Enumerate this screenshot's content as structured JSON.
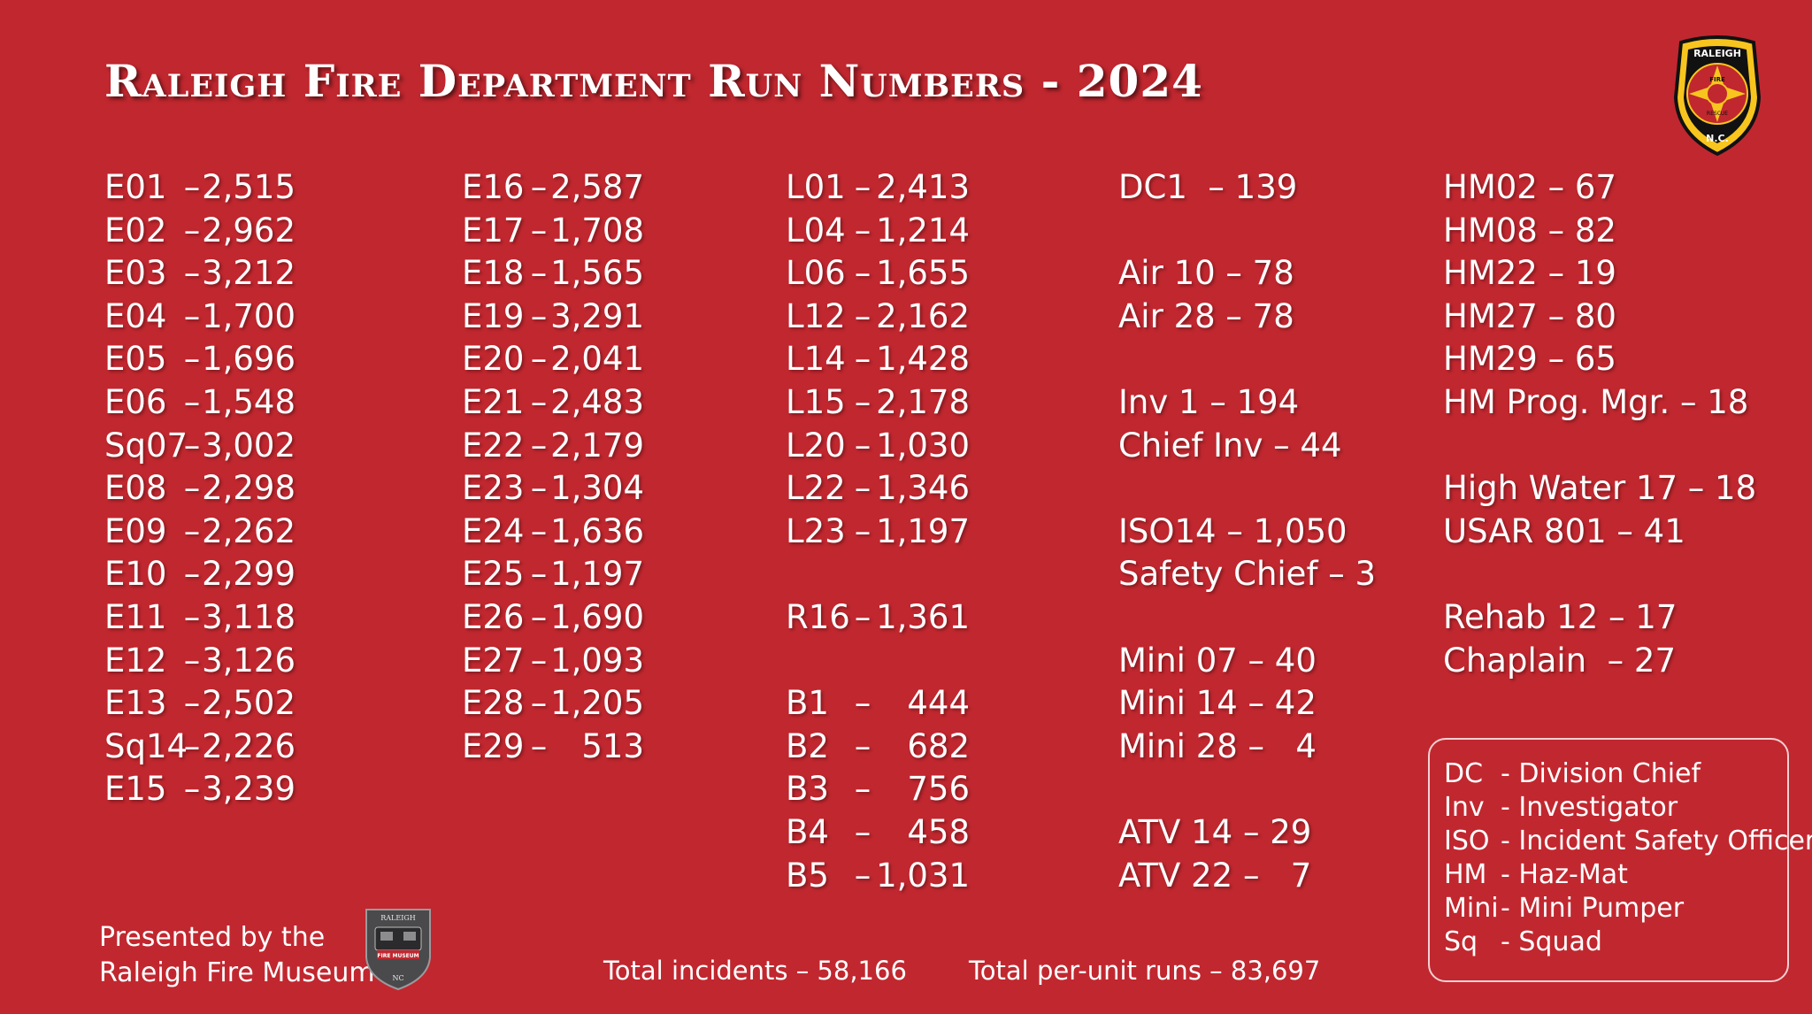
{
  "title": "Raleigh Fire Department Run Numbers - 2024",
  "badge": {
    "top_text": "RALEIGH",
    "center_text": "FIRE",
    "lower_text": "RESCUE",
    "bottom_text": "N.C."
  },
  "columns": [
    {
      "type": "runs",
      "rows": [
        {
          "unit": "E01",
          "sep": "–",
          "value": "2,515"
        },
        {
          "unit": "E02",
          "sep": "–",
          "value": "2,962"
        },
        {
          "unit": "E03",
          "sep": "–",
          "value": "3,212"
        },
        {
          "unit": "E04",
          "sep": "–",
          "value": "1,700"
        },
        {
          "unit": "E05",
          "sep": "–",
          "value": "1,696"
        },
        {
          "unit": "E06",
          "sep": "–",
          "value": "1,548"
        },
        {
          "unit": "Sq07",
          "sep": "–",
          "value": "3,002"
        },
        {
          "unit": "E08",
          "sep": "–",
          "value": "2,298"
        },
        {
          "unit": "E09",
          "sep": "–",
          "value": "2,262"
        },
        {
          "unit": "E10",
          "sep": "–",
          "value": "2,299"
        },
        {
          "unit": "E11",
          "sep": "–",
          "value": "3,118"
        },
        {
          "unit": "E12",
          "sep": "–",
          "value": "3,126"
        },
        {
          "unit": "E13",
          "sep": "–",
          "value": "2,502"
        },
        {
          "unit": "Sq14",
          "sep": "–",
          "value": "2,226"
        },
        {
          "unit": "E15",
          "sep": "–",
          "value": "3,239"
        }
      ]
    },
    {
      "type": "runs",
      "rows": [
        {
          "unit": "E16",
          "sep": "–",
          "value": "2,587"
        },
        {
          "unit": "E17",
          "sep": "–",
          "value": "1,708"
        },
        {
          "unit": "E18",
          "sep": "–",
          "value": "1,565"
        },
        {
          "unit": "E19",
          "sep": "–",
          "value": "3,291"
        },
        {
          "unit": "E20",
          "sep": "–",
          "value": "2,041"
        },
        {
          "unit": "E21",
          "sep": "–",
          "value": "2,483"
        },
        {
          "unit": "E22",
          "sep": "–",
          "value": "2,179"
        },
        {
          "unit": "E23",
          "sep": "–",
          "value": "1,304"
        },
        {
          "unit": "E24",
          "sep": "–",
          "value": "1,636"
        },
        {
          "unit": "E25",
          "sep": "–",
          "value": "1,197"
        },
        {
          "unit": "E26",
          "sep": "–",
          "value": "1,690"
        },
        {
          "unit": "E27",
          "sep": "–",
          "value": "1,093"
        },
        {
          "unit": "E28",
          "sep": "–",
          "value": "1,205"
        },
        {
          "unit": "E29",
          "sep": "–",
          "value": "513"
        }
      ]
    },
    {
      "type": "runs",
      "rows": [
        {
          "unit": "L01",
          "sep": "–",
          "value": "2,413"
        },
        {
          "unit": "L04",
          "sep": "–",
          "value": "1,214"
        },
        {
          "unit": "L06",
          "sep": "–",
          "value": "1,655"
        },
        {
          "unit": "L12",
          "sep": "–",
          "value": "2,162"
        },
        {
          "unit": "L14",
          "sep": "–",
          "value": "1,428"
        },
        {
          "unit": "L15",
          "sep": "–",
          "value": "2,178"
        },
        {
          "unit": "L20",
          "sep": "–",
          "value": "1,030"
        },
        {
          "unit": "L22",
          "sep": "–",
          "value": "1,346"
        },
        {
          "unit": "L23",
          "sep": "–",
          "value": "1,197"
        },
        null,
        {
          "unit": "R16",
          "sep": "–",
          "value": "1,361"
        },
        null,
        {
          "unit": "B1",
          "sep": "–",
          "value": "444"
        },
        {
          "unit": "B2",
          "sep": "–",
          "value": "682"
        },
        {
          "unit": "B3",
          "sep": "–",
          "value": "756"
        },
        {
          "unit": "B4",
          "sep": "–",
          "value": "458"
        },
        {
          "unit": "B5",
          "sep": "–",
          "value": "1,031"
        }
      ]
    },
    {
      "type": "text",
      "rows": [
        "DC1  – 139",
        null,
        "Air 10 – 78",
        "Air 28 – 78",
        null,
        "Inv 1 – 194",
        "Chief Inv – 44",
        null,
        "ISO14 – 1,050",
        "Safety Chief – 3",
        null,
        "Mini 07 – 40",
        "Mini 14 – 42",
        "Mini 28 –   4",
        null,
        "ATV 14 – 29",
        "ATV 22 –   7"
      ]
    },
    {
      "type": "text",
      "rows": [
        "HM02 – 67",
        "HM08 – 82",
        "HM22 – 19",
        "HM27 – 80",
        "HM29 – 65",
        "HM Prog. Mgr. – 18",
        null,
        "High Water 17 – 18",
        "USAR 801 – 41",
        null,
        "Rehab 12 – 17",
        "Chaplain  – 27"
      ]
    }
  ],
  "legend": [
    {
      "abbr": "DC",
      "desc": "- Division Chief"
    },
    {
      "abbr": "Inv",
      "desc": "- Investigator"
    },
    {
      "abbr": "ISO",
      "desc": "- Incident Safety Officer"
    },
    {
      "abbr": "HM",
      "desc": "- Haz-Mat"
    },
    {
      "abbr": "Mini",
      "desc": "- Mini Pumper"
    },
    {
      "abbr": "Sq",
      "desc": "- Squad"
    }
  ],
  "footer": {
    "presented_line1": "Presented by the",
    "presented_line2": "Raleigh Fire Museum",
    "museum_logo_top": "RALEIGH",
    "museum_logo_banner": "FIRE MUSEUM",
    "museum_logo_bottom": "NC",
    "total_incidents": "Total incidents – 58,166",
    "total_per_unit": "Total per-unit runs – 83,697"
  },
  "colors": {
    "background": "#c1272f",
    "text": "#ffffff",
    "badge_yellow": "#f7c51e",
    "badge_black": "#111111"
  }
}
